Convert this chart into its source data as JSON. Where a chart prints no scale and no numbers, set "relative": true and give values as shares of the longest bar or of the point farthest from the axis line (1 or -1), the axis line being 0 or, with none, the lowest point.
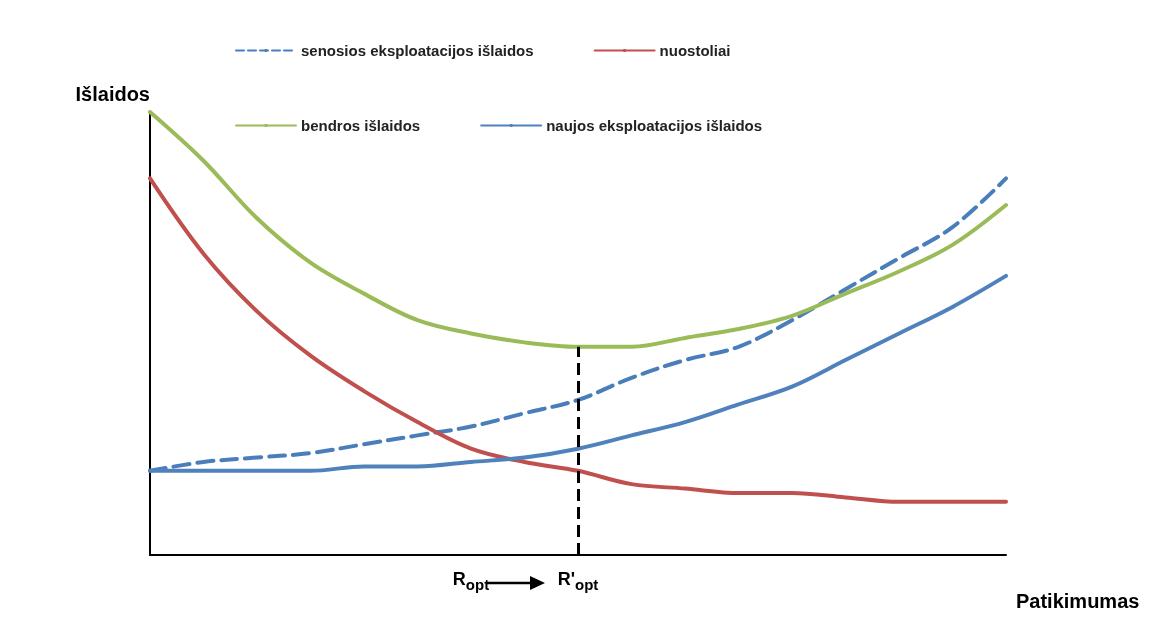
{
  "chart_data": {
    "type": "line",
    "relative": true,
    "xlabel": "Patikimumas",
    "ylabel": "Išlaidos",
    "categories": [
      null,
      null,
      null,
      null,
      null,
      null,
      "R$_{opt}$",
      null,
      "R'$_{opt}$",
      null,
      null,
      null,
      null,
      null,
      null,
      null,
      null
    ],
    "series": [
      {
        "name": "senosios eksploatacijos išlaidos",
        "color": "#4a7ebb",
        "line_style": "dashed",
        "values": [
          0.19,
          0.21,
          0.22,
          0.23,
          0.25,
          0.27,
          0.29,
          0.32,
          0.35,
          0.4,
          0.44,
          0.47,
          0.53,
          0.6,
          0.67,
          0.74,
          0.85
        ]
      },
      {
        "name": "nuostoliai",
        "color": "#c0504d",
        "values": [
          0.85,
          0.68,
          0.55,
          0.45,
          0.37,
          0.3,
          0.24,
          0.21,
          0.19,
          0.16,
          0.15,
          0.14,
          0.14,
          0.13,
          0.12,
          0.12,
          0.12
        ]
      },
      {
        "name": "bendros išlaidos",
        "color": "#9bbb59",
        "values": [
          1.0,
          0.89,
          0.76,
          0.66,
          0.59,
          0.53,
          0.5,
          0.48,
          0.47,
          0.47,
          0.49,
          0.51,
          0.54,
          0.59,
          0.64,
          0.7,
          0.79
        ]
      },
      {
        "name": "naujos eksploatacijos išlaidos",
        "color": "#4f81bd",
        "values": [
          0.19,
          0.19,
          0.19,
          0.19,
          0.2,
          0.2,
          0.21,
          0.22,
          0.24,
          0.27,
          0.3,
          0.34,
          0.38,
          0.44,
          0.5,
          0.56,
          0.63
        ]
      }
    ],
    "ref_lines": [
      {
        "axis": "x",
        "value": "R'$_{opt}$",
        "color": "#000000",
        "line_style": "dashed"
      }
    ],
    "legend": "top",
    "grid": false,
    "marker": "none",
    "line_style": "solid"
  }
}
